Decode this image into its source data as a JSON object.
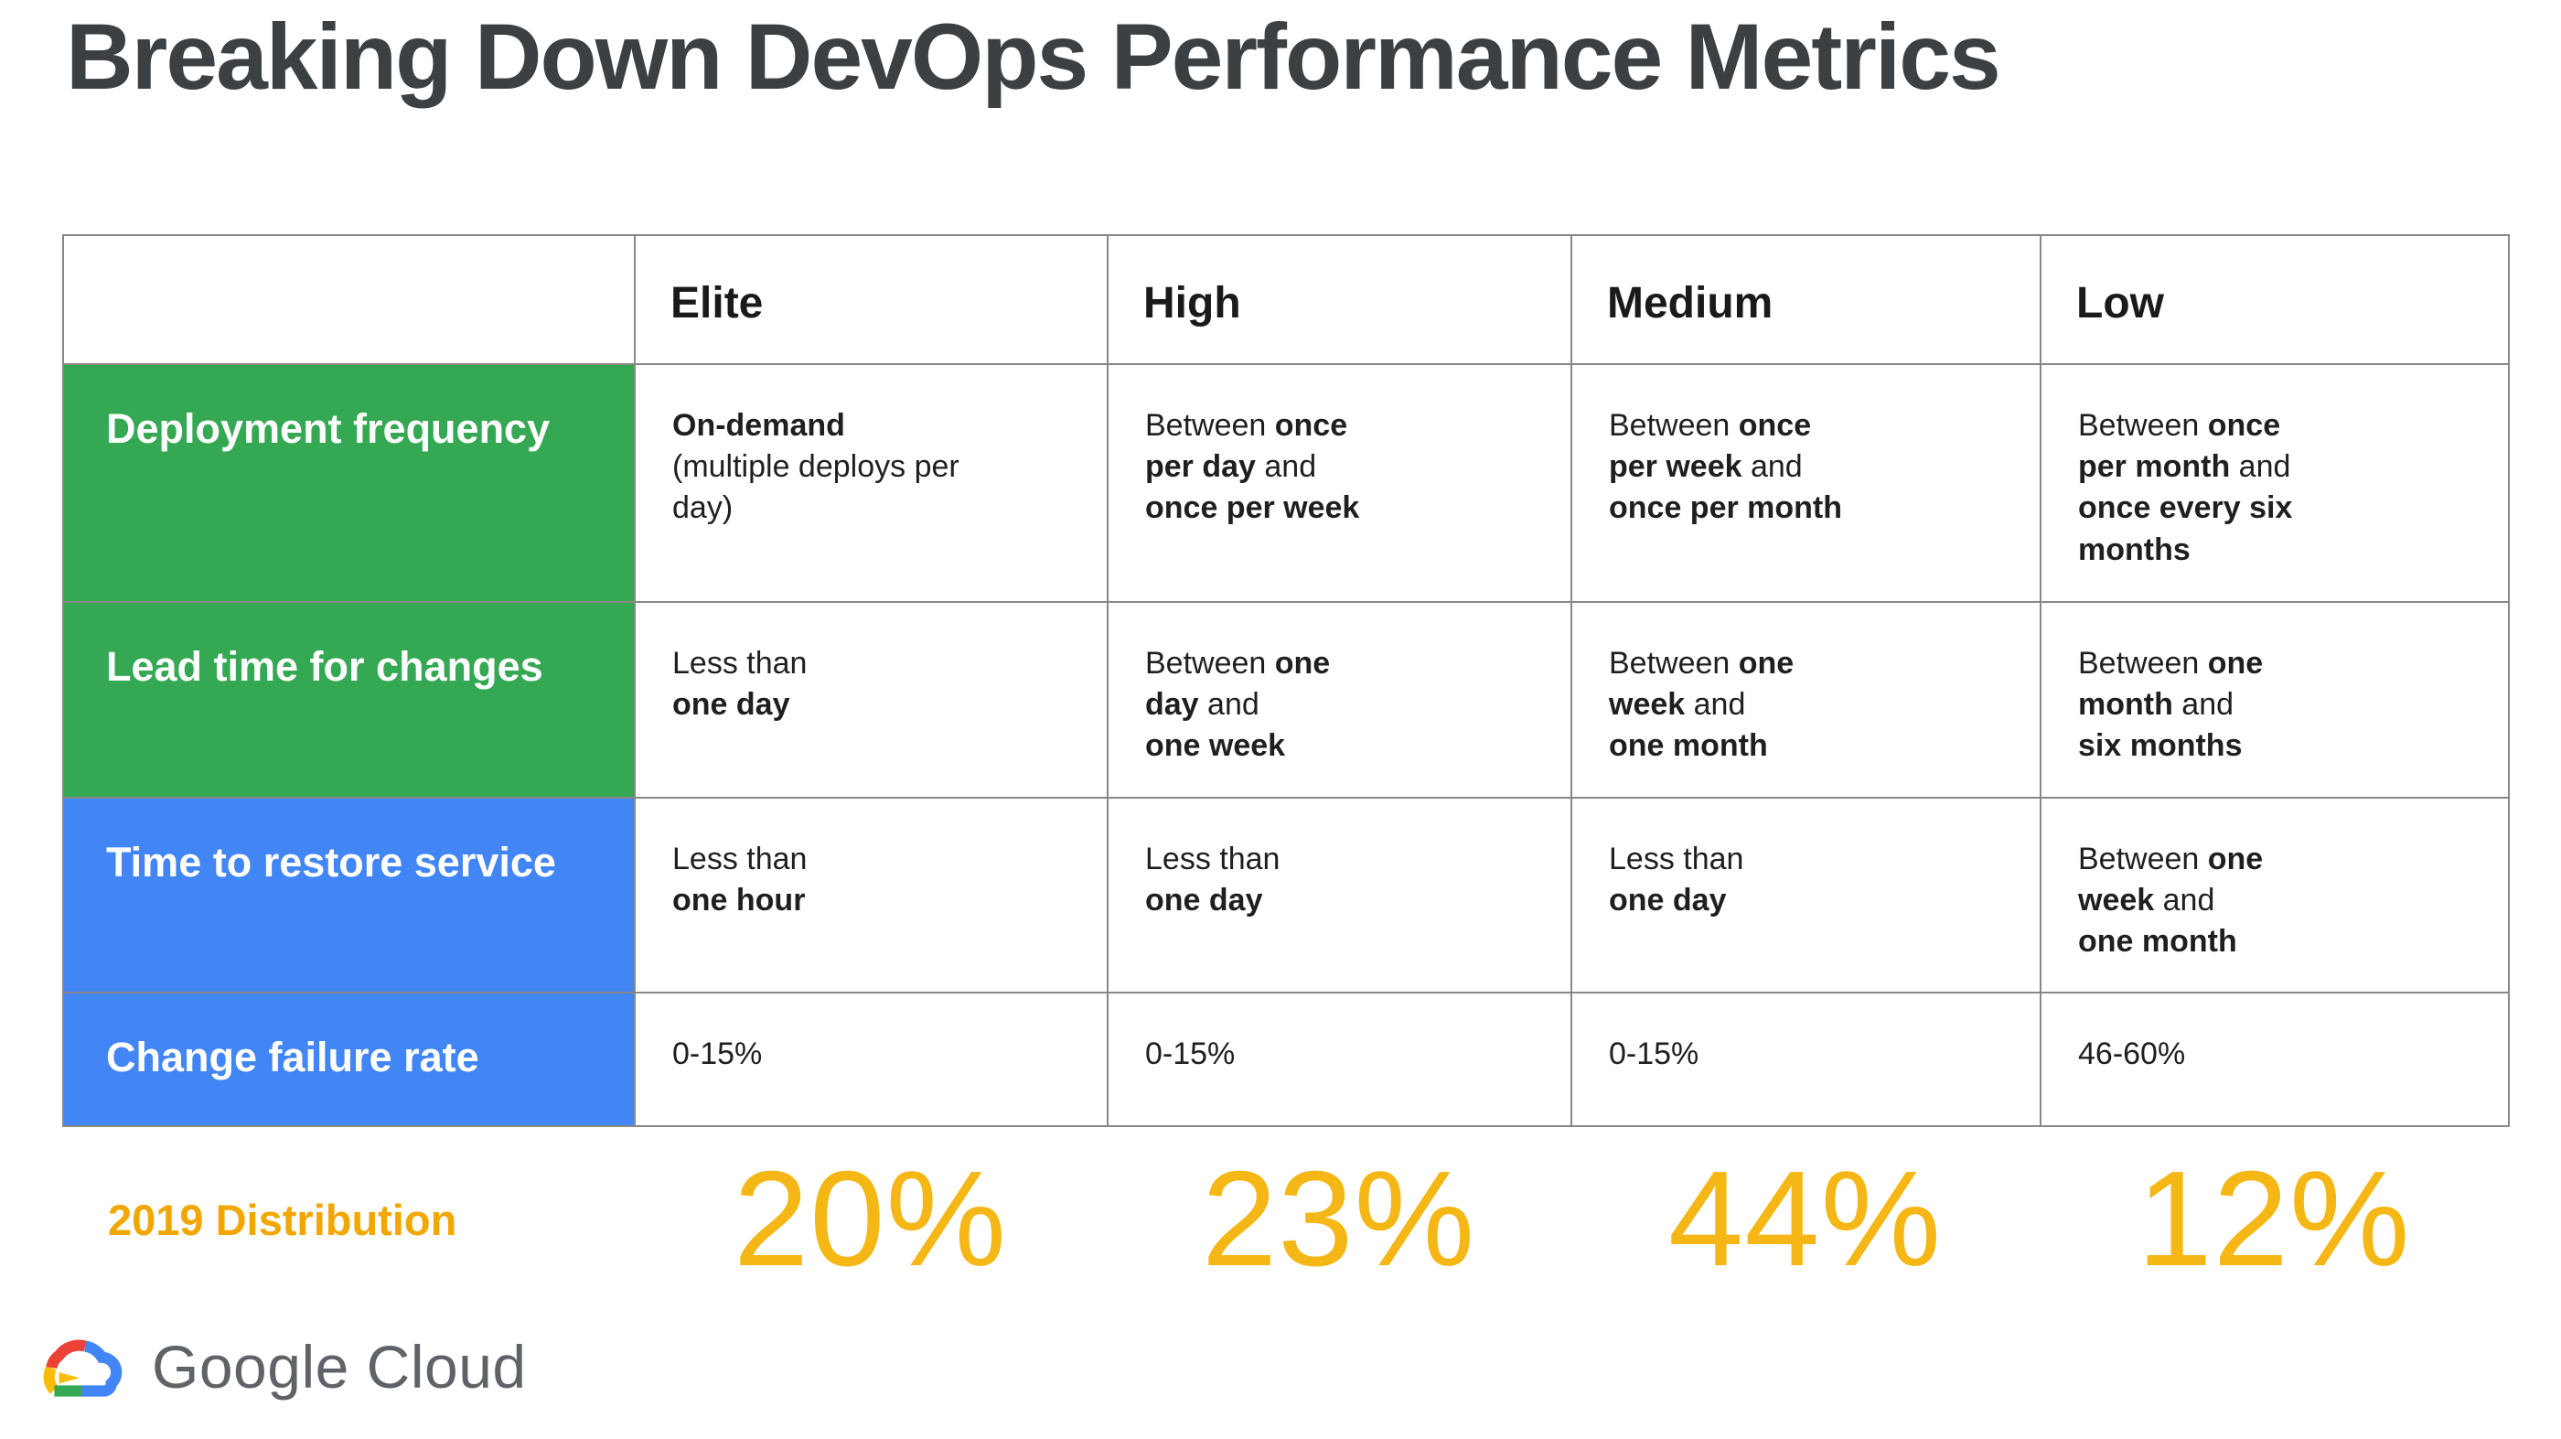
{
  "title": "Breaking Down DevOps Performance Metrics",
  "colors": {
    "title": "#3C4043",
    "border": "#888888",
    "body_text": "#1F1F1F"
  },
  "table": {
    "corner": "",
    "column_headers": [
      "Elite",
      "High",
      "Medium",
      "Low"
    ],
    "rows": [
      {
        "label": "Deployment frequency",
        "color": "#34A853",
        "cells": [
          [
            {
              "t": "On-demand",
              "b": true
            },
            {
              "t": "\n(multiple deploys per\nday)",
              "b": false
            }
          ],
          [
            {
              "t": "Between ",
              "b": false
            },
            {
              "t": "once\nper day",
              "b": true
            },
            {
              "t": " and\n",
              "b": false
            },
            {
              "t": "once per week",
              "b": true
            }
          ],
          [
            {
              "t": "Between ",
              "b": false
            },
            {
              "t": "once\nper week",
              "b": true
            },
            {
              "t": " and\n",
              "b": false
            },
            {
              "t": "once per month",
              "b": true
            }
          ],
          [
            {
              "t": "Between ",
              "b": false
            },
            {
              "t": "once\nper month",
              "b": true
            },
            {
              "t": " and\n",
              "b": false
            },
            {
              "t": "once every six\nmonths",
              "b": true
            }
          ]
        ]
      },
      {
        "label": "Lead time for changes",
        "color": "#34A853",
        "cells": [
          [
            {
              "t": "Less than\n",
              "b": false
            },
            {
              "t": "one day",
              "b": true
            }
          ],
          [
            {
              "t": "Between ",
              "b": false
            },
            {
              "t": "one\nday",
              "b": true
            },
            {
              "t": " and\n",
              "b": false
            },
            {
              "t": "one week",
              "b": true
            }
          ],
          [
            {
              "t": "Between ",
              "b": false
            },
            {
              "t": "one\nweek",
              "b": true
            },
            {
              "t": " and\n",
              "b": false
            },
            {
              "t": "one month",
              "b": true
            }
          ],
          [
            {
              "t": "Between ",
              "b": false
            },
            {
              "t": "one\nmonth",
              "b": true
            },
            {
              "t": " and\n",
              "b": false
            },
            {
              "t": "six months",
              "b": true
            }
          ]
        ]
      },
      {
        "label": "Time to restore service",
        "color": "#4285F4",
        "cells": [
          [
            {
              "t": "Less than\n",
              "b": false
            },
            {
              "t": "one hour",
              "b": true
            }
          ],
          [
            {
              "t": "Less than\n",
              "b": false
            },
            {
              "t": "one day",
              "b": true
            }
          ],
          [
            {
              "t": "Less than\n",
              "b": false
            },
            {
              "t": "one day",
              "b": true
            }
          ],
          [
            {
              "t": "Between ",
              "b": false
            },
            {
              "t": "one\nweek",
              "b": true
            },
            {
              "t": " and\n",
              "b": false
            },
            {
              "t": "one month",
              "b": true
            }
          ]
        ]
      },
      {
        "label": "Change failure rate",
        "color": "#4285F4",
        "cells": [
          [
            {
              "t": "0-15%",
              "b": false
            }
          ],
          [
            {
              "t": "0-15%",
              "b": false
            }
          ],
          [
            {
              "t": "0-15%",
              "b": false
            }
          ],
          [
            {
              "t": "46-60%",
              "b": false
            }
          ]
        ]
      }
    ]
  },
  "distribution": {
    "label": "2019 Distribution",
    "label_color": "#F2A600",
    "value_color": "#F5B715",
    "values": [
      "20%",
      "23%",
      "44%",
      "12%"
    ]
  },
  "footer": {
    "brand": "Google Cloud",
    "text_color": "#5F6368",
    "icon_colors": {
      "red": "#EA4335",
      "yellow": "#FBBC05",
      "green": "#34A853",
      "blue": "#4285F4"
    }
  },
  "chart_data": {
    "type": "table",
    "title": "Breaking Down DevOps Performance Metrics",
    "columns": [
      "Elite",
      "High",
      "Medium",
      "Low"
    ],
    "row_labels": [
      "Deployment frequency",
      "Lead time for changes",
      "Time to restore service",
      "Change failure rate"
    ],
    "cells": [
      [
        "On-demand (multiple deploys per day)",
        "Between once per day and once per week",
        "Between once per week and once per month",
        "Between once per month and once every six months"
      ],
      [
        "Less than one day",
        "Between one day and one week",
        "Between one week and one month",
        "Between one month and six months"
      ],
      [
        "Less than one hour",
        "Less than one day",
        "Less than one day",
        "Between one week and one month"
      ],
      [
        "0-15%",
        "0-15%",
        "0-15%",
        "46-60%"
      ]
    ],
    "distribution_2019": {
      "label": "2019 Distribution",
      "categories": [
        "Elite",
        "High",
        "Medium",
        "Low"
      ],
      "values_percent": [
        20,
        23,
        44,
        12
      ]
    }
  }
}
